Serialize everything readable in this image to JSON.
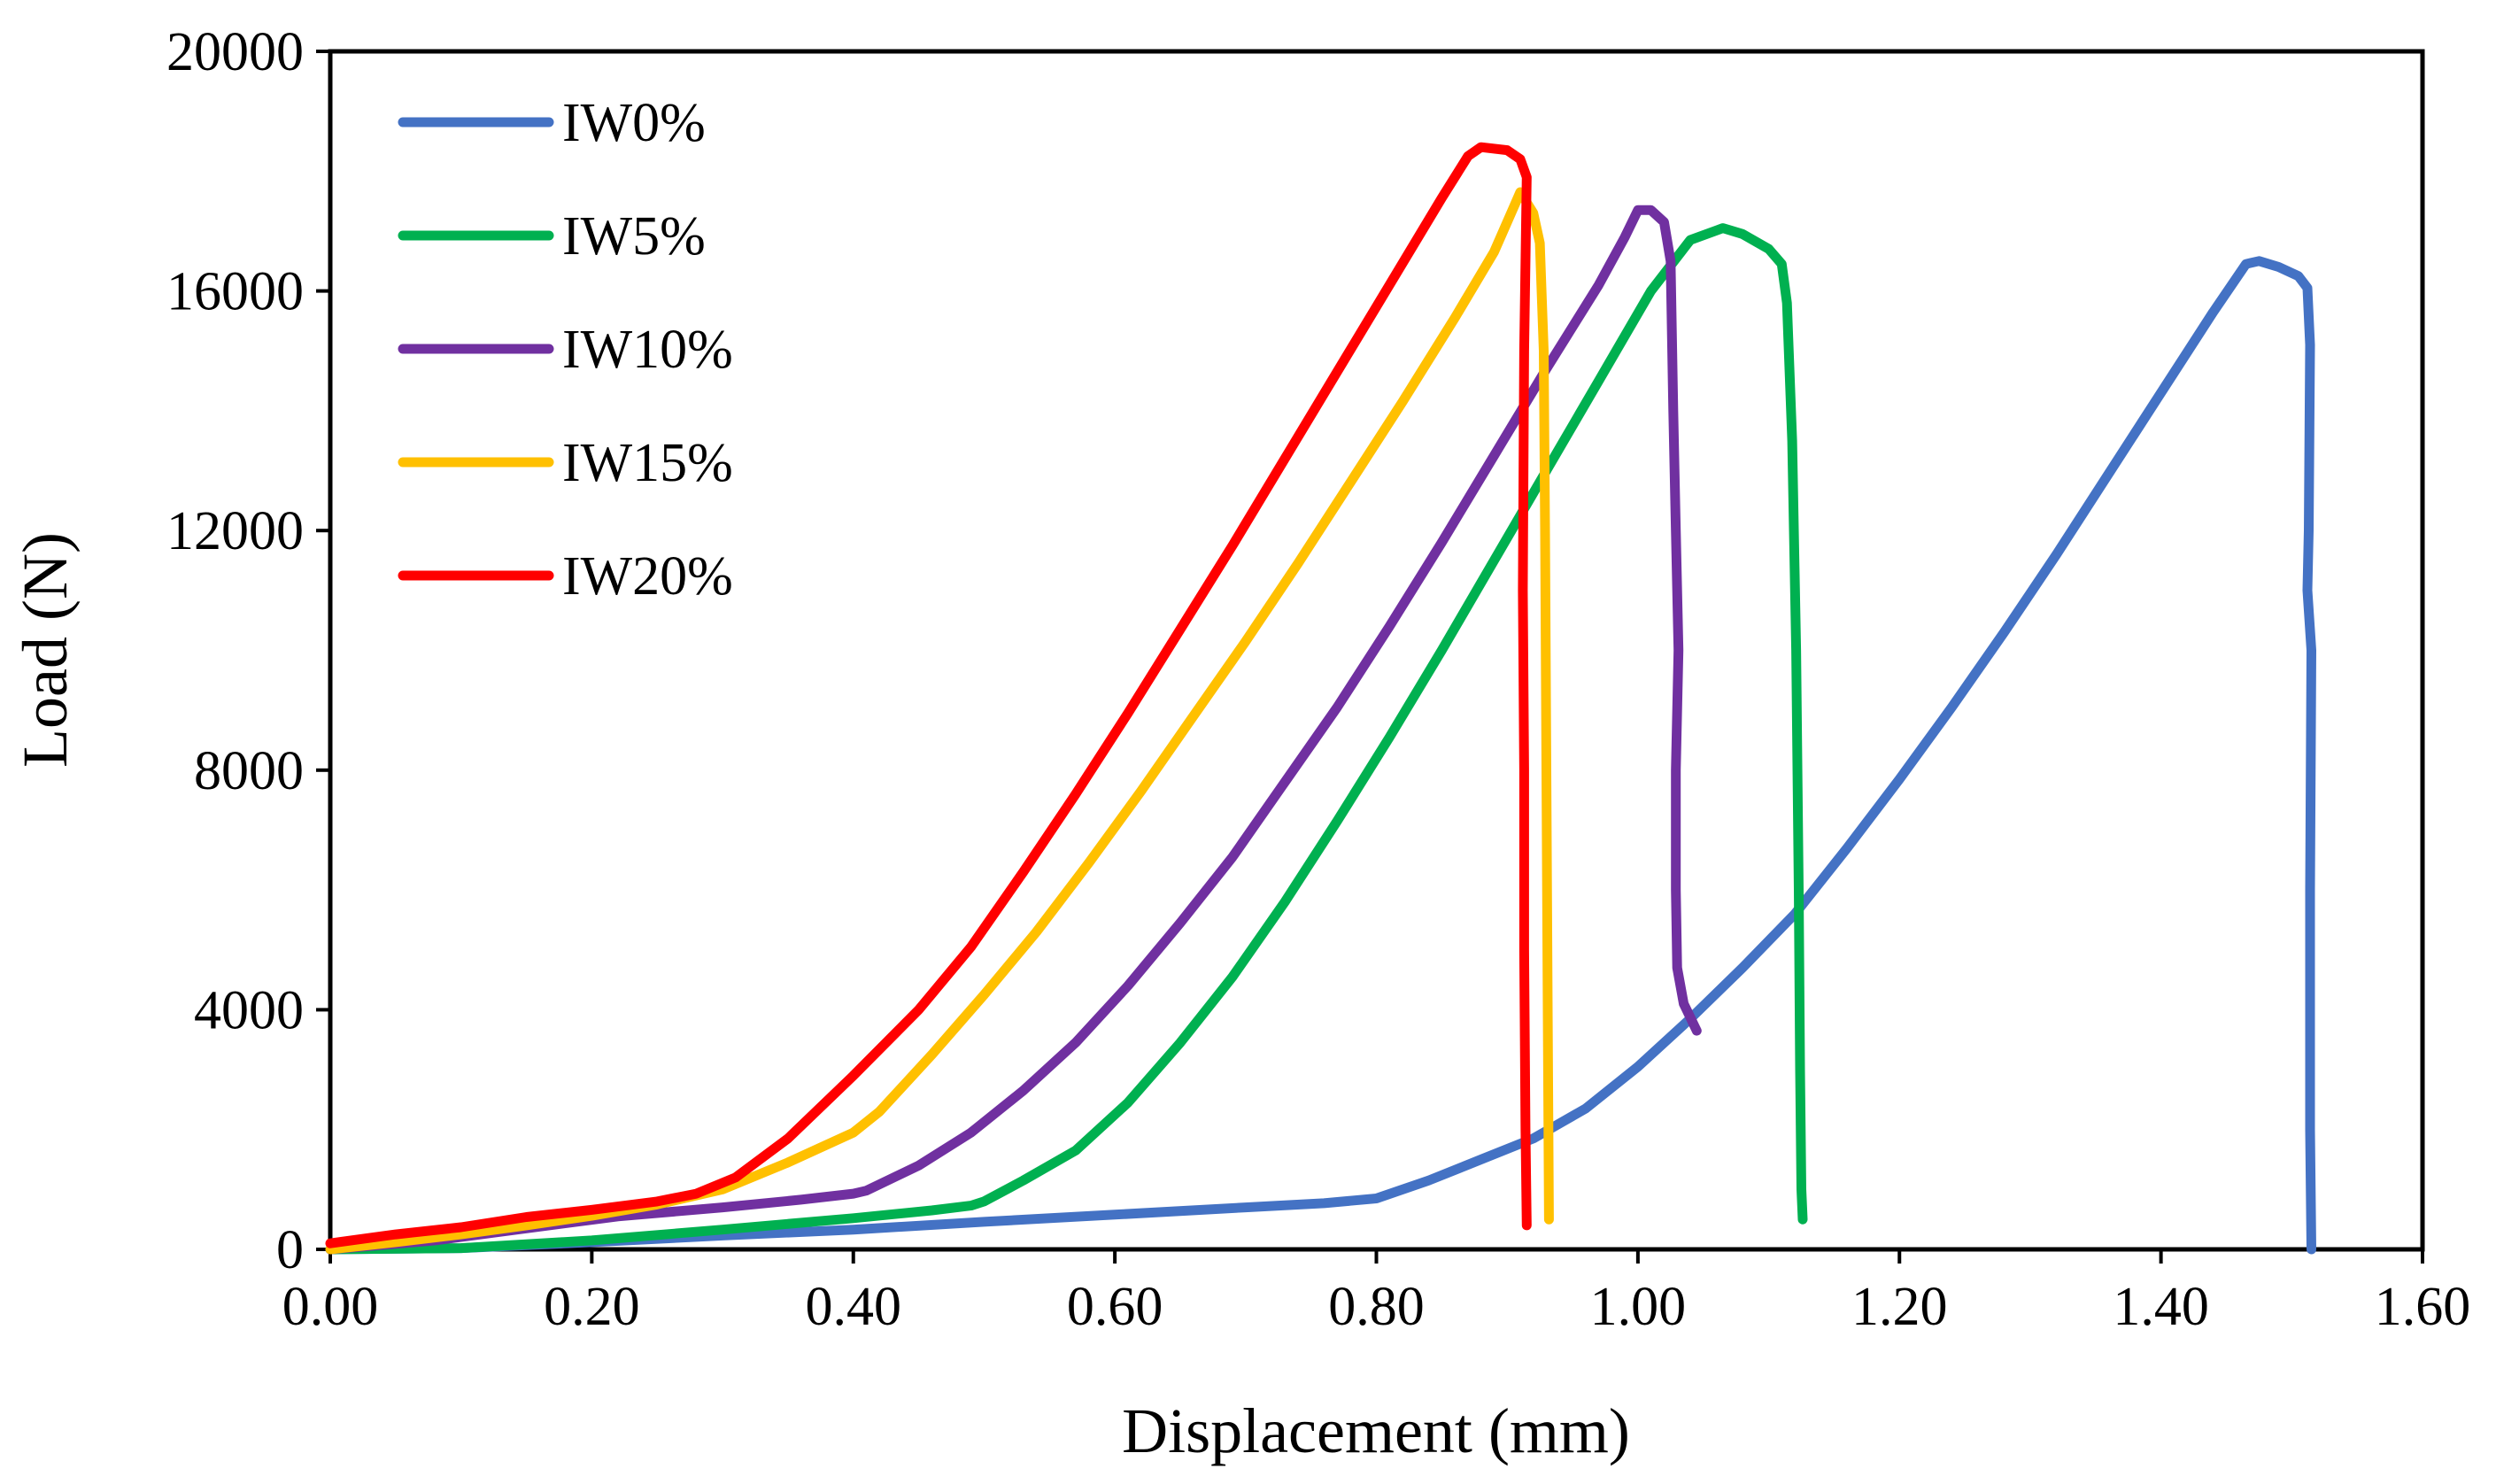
{
  "chart_data": {
    "type": "line",
    "title": "",
    "xlabel": "Displacement (mm)",
    "ylabel": "Load (N)",
    "xlim": [
      0,
      1.6
    ],
    "ylim": [
      0,
      20000
    ],
    "x_ticks": [
      "0.00",
      "0.20",
      "0.40",
      "0.60",
      "0.80",
      "1.00",
      "1.20",
      "1.40",
      "1.60"
    ],
    "y_ticks": [
      "0",
      "4000",
      "8000",
      "12000",
      "16000",
      "20000"
    ],
    "grid": false,
    "legend_position": "top-left",
    "series": [
      {
        "name": "IW0%",
        "color": "#4472C4",
        "points": [
          [
            0.0,
            0
          ],
          [
            0.1,
            20
          ],
          [
            0.2,
            120
          ],
          [
            0.3,
            230
          ],
          [
            0.4,
            330
          ],
          [
            0.5,
            460
          ],
          [
            0.6,
            580
          ],
          [
            0.7,
            700
          ],
          [
            0.76,
            770
          ],
          [
            0.8,
            850
          ],
          [
            0.84,
            1150
          ],
          [
            0.88,
            1500
          ],
          [
            0.92,
            1850
          ],
          [
            0.96,
            2350
          ],
          [
            1.0,
            3050
          ],
          [
            1.04,
            3850
          ],
          [
            1.08,
            4700
          ],
          [
            1.12,
            5600
          ],
          [
            1.16,
            6700
          ],
          [
            1.2,
            7850
          ],
          [
            1.24,
            9050
          ],
          [
            1.28,
            10300
          ],
          [
            1.32,
            11600
          ],
          [
            1.36,
            12950
          ],
          [
            1.4,
            14300
          ],
          [
            1.44,
            15650
          ],
          [
            1.465,
            16450
          ],
          [
            1.475,
            16500
          ],
          [
            1.49,
            16400
          ],
          [
            1.505,
            16250
          ],
          [
            1.512,
            16050
          ],
          [
            1.514,
            15100
          ],
          [
            1.513,
            12000
          ],
          [
            1.512,
            11000
          ],
          [
            1.515,
            10000
          ],
          [
            1.514,
            6000
          ],
          [
            1.514,
            2000
          ],
          [
            1.515,
            0
          ]
        ]
      },
      {
        "name": "IW5%",
        "color": "#00B050",
        "points": [
          [
            0.0,
            0
          ],
          [
            0.1,
            20
          ],
          [
            0.2,
            150
          ],
          [
            0.3,
            330
          ],
          [
            0.4,
            520
          ],
          [
            0.46,
            650
          ],
          [
            0.49,
            730
          ],
          [
            0.5,
            800
          ],
          [
            0.53,
            1150
          ],
          [
            0.57,
            1650
          ],
          [
            0.61,
            2450
          ],
          [
            0.65,
            3450
          ],
          [
            0.69,
            4550
          ],
          [
            0.73,
            5800
          ],
          [
            0.77,
            7150
          ],
          [
            0.81,
            8550
          ],
          [
            0.85,
            10000
          ],
          [
            0.89,
            11500
          ],
          [
            0.93,
            13000
          ],
          [
            0.97,
            14500
          ],
          [
            1.01,
            16000
          ],
          [
            1.04,
            16850
          ],
          [
            1.065,
            17050
          ],
          [
            1.08,
            16950
          ],
          [
            1.1,
            16700
          ],
          [
            1.11,
            16450
          ],
          [
            1.114,
            15800
          ],
          [
            1.118,
            13500
          ],
          [
            1.121,
            10000
          ],
          [
            1.123,
            6000
          ],
          [
            1.124,
            3000
          ],
          [
            1.125,
            1000
          ],
          [
            1.126,
            500
          ]
        ]
      },
      {
        "name": "IW10%",
        "color": "#7030A0",
        "points": [
          [
            0.0,
            0
          ],
          [
            0.08,
            150
          ],
          [
            0.15,
            350
          ],
          [
            0.22,
            550
          ],
          [
            0.3,
            700
          ],
          [
            0.36,
            830
          ],
          [
            0.4,
            930
          ],
          [
            0.41,
            980
          ],
          [
            0.45,
            1400
          ],
          [
            0.49,
            1950
          ],
          [
            0.53,
            2650
          ],
          [
            0.57,
            3450
          ],
          [
            0.61,
            4400
          ],
          [
            0.65,
            5450
          ],
          [
            0.69,
            6550
          ],
          [
            0.73,
            7800
          ],
          [
            0.77,
            9050
          ],
          [
            0.81,
            10400
          ],
          [
            0.85,
            11800
          ],
          [
            0.89,
            13250
          ],
          [
            0.93,
            14700
          ],
          [
            0.97,
            16100
          ],
          [
            0.99,
            16900
          ],
          [
            1.0,
            17350
          ],
          [
            1.01,
            17350
          ],
          [
            1.02,
            17150
          ],
          [
            1.025,
            16500
          ],
          [
            1.027,
            14000
          ],
          [
            1.029,
            12000
          ],
          [
            1.031,
            10000
          ],
          [
            1.029,
            8000
          ],
          [
            1.029,
            6000
          ],
          [
            1.03,
            4700
          ],
          [
            1.035,
            4100
          ],
          [
            1.045,
            3650
          ]
        ]
      },
      {
        "name": "IW15%",
        "color": "#FFC000",
        "points": [
          [
            0.0,
            0
          ],
          [
            0.05,
            120
          ],
          [
            0.1,
            250
          ],
          [
            0.15,
            400
          ],
          [
            0.2,
            560
          ],
          [
            0.25,
            750
          ],
          [
            0.3,
            1000
          ],
          [
            0.35,
            1450
          ],
          [
            0.4,
            1950
          ],
          [
            0.42,
            2300
          ],
          [
            0.46,
            3250
          ],
          [
            0.5,
            4250
          ],
          [
            0.54,
            5300
          ],
          [
            0.58,
            6450
          ],
          [
            0.62,
            7650
          ],
          [
            0.66,
            8900
          ],
          [
            0.7,
            10150
          ],
          [
            0.74,
            11450
          ],
          [
            0.78,
            12800
          ],
          [
            0.82,
            14150
          ],
          [
            0.86,
            15550
          ],
          [
            0.89,
            16650
          ],
          [
            0.905,
            17400
          ],
          [
            0.91,
            17650
          ],
          [
            0.92,
            17300
          ],
          [
            0.925,
            16800
          ],
          [
            0.928,
            15000
          ],
          [
            0.929,
            12000
          ],
          [
            0.93,
            8000
          ],
          [
            0.931,
            4000
          ],
          [
            0.932,
            500
          ]
        ]
      },
      {
        "name": "IW20%",
        "color": "#FF0000",
        "points": [
          [
            0.0,
            100
          ],
          [
            0.05,
            250
          ],
          [
            0.1,
            370
          ],
          [
            0.15,
            540
          ],
          [
            0.2,
            660
          ],
          [
            0.25,
            800
          ],
          [
            0.28,
            930
          ],
          [
            0.31,
            1200
          ],
          [
            0.35,
            1850
          ],
          [
            0.4,
            2900
          ],
          [
            0.45,
            4000
          ],
          [
            0.49,
            5050
          ],
          [
            0.53,
            6300
          ],
          [
            0.57,
            7600
          ],
          [
            0.61,
            8950
          ],
          [
            0.65,
            10350
          ],
          [
            0.69,
            11750
          ],
          [
            0.73,
            13200
          ],
          [
            0.77,
            14650
          ],
          [
            0.81,
            16100
          ],
          [
            0.85,
            17550
          ],
          [
            0.87,
            18250
          ],
          [
            0.88,
            18400
          ],
          [
            0.9,
            18350
          ],
          [
            0.91,
            18200
          ],
          [
            0.915,
            17900
          ],
          [
            0.913,
            15000
          ],
          [
            0.912,
            11000
          ],
          [
            0.913,
            8000
          ],
          [
            0.913,
            5000
          ],
          [
            0.914,
            2000
          ],
          [
            0.915,
            400
          ]
        ]
      }
    ]
  }
}
